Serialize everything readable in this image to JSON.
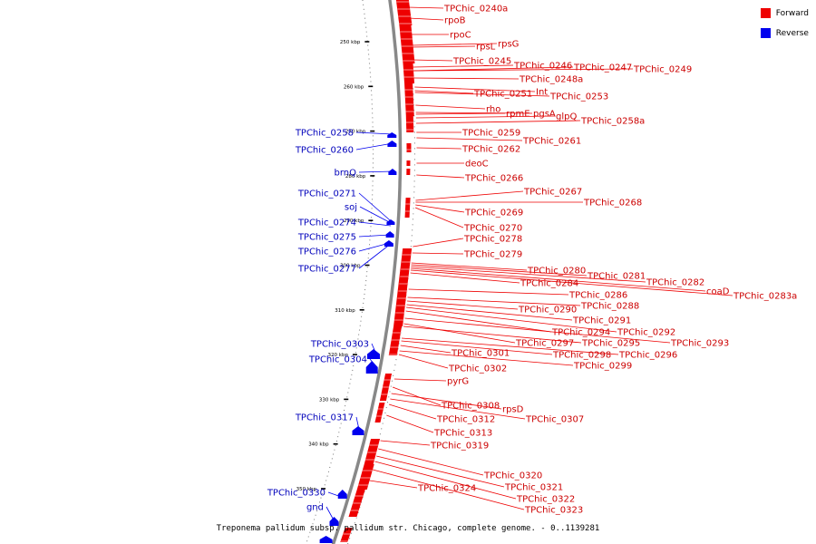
{
  "legend": {
    "forward_label": "Forward",
    "forward_color": "#ee0000",
    "reverse_label": "Reverse",
    "reverse_color": "#0000ee"
  },
  "caption": "Treponema pallidum subsp. pallidum str. Chicago, complete genome. - 0..1139281",
  "ticks": [
    {
      "kbp": 250,
      "label": "250 kbp"
    },
    {
      "kbp": 260,
      "label": "260 kbp"
    },
    {
      "kbp": 270,
      "label": "270 kbp"
    },
    {
      "kbp": 280,
      "label": "280 kbp"
    },
    {
      "kbp": 290,
      "label": "290 kbp"
    },
    {
      "kbp": 300,
      "label": "300 kbp"
    },
    {
      "kbp": 310,
      "label": "310 kbp"
    },
    {
      "kbp": 320,
      "label": "320 kbp"
    },
    {
      "kbp": 330,
      "label": "330 kbp"
    },
    {
      "kbp": 340,
      "label": "340 kbp"
    },
    {
      "kbp": 350,
      "label": "350 kbp"
    }
  ],
  "forward_genes": [
    "TPChic_0240a",
    "rpoB",
    "rpoC",
    "rpsL",
    "rpsG",
    "TPChic_0245",
    "TPChic_0246",
    "TPChic_0247",
    "TPChic_0249",
    "TPChic_0248a",
    "Int",
    "TPChic_0251",
    "TPChic_0253",
    "rho",
    "rpmE",
    "pgsA",
    "glpQ",
    "TPChic_0258a",
    "TPChic_0259",
    "TPChic_0261",
    "TPChic_0262",
    "deoC",
    "TPChic_0266",
    "TPChic_0267",
    "TPChic_0268",
    "TPChic_0269",
    "TPChic_0270",
    "TPChic_0278",
    "TPChic_0279",
    "TPChic_0280",
    "TPChic_0281",
    "TPChic_0282",
    "coaD",
    "TPChic_0283a",
    "TPChic_0284",
    "TPChic_0286",
    "TPChic_0288",
    "TPChic_0290",
    "TPChic_0291",
    "TPChic_0292",
    "TPChic_0294",
    "TPChic_0293",
    "TPChic_0297",
    "TPChic_0295",
    "TPChic_0296",
    "TPChic_0298",
    "TPChic_0301",
    "TPChic_0299",
    "TPChic_0302",
    "pyrG",
    "TPChic_0308",
    "rpsD",
    "TPChic_0307",
    "TPChic_0312",
    "TPChic_0313",
    "TPChic_0319",
    "TPChic_0320",
    "TPChic_0321",
    "TPChic_0322",
    "TPChic_0323",
    "TPChic_0324"
  ],
  "reverse_genes": [
    "TPChic_0258",
    "TPChic_0260",
    "brnQ",
    "TPChic_0271",
    "soj",
    "TPChic_0274",
    "TPChic_0275",
    "TPChic_0276",
    "TPChic_0277",
    "TPChic_0303",
    "TPChic_0304",
    "TPChic_0317",
    "TPChic_0330",
    "gnd"
  ]
}
